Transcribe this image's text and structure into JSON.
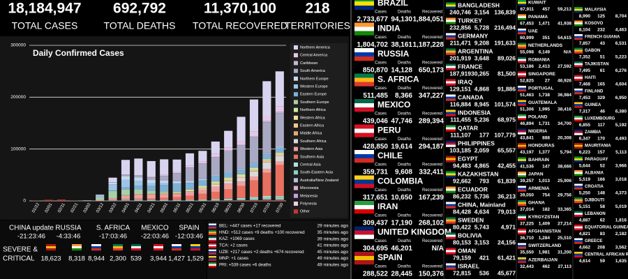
{
  "stats": [
    {
      "value": "18,184,947",
      "label": "TOTAL CASES"
    },
    {
      "value": "692,792",
      "label": "TOTAL DEATHS"
    },
    {
      "value": "11,370,100",
      "label": "TOTAL RECOVERED"
    },
    {
      "value": "218",
      "label": "TERRITORIES"
    }
  ],
  "chart_data": {
    "type": "bar",
    "stacked": true,
    "title": "Daily Confirmed Cases",
    "grid": true,
    "categories": [
      "01/22",
      "02/01",
      "02/11",
      "02/21",
      "03/02",
      "03/12",
      "03/22",
      "04/01",
      "04/11",
      "04/21",
      "05/01",
      "05/11",
      "05/21",
      "05/31",
      "06/10",
      "06/20",
      "06/30",
      "07/10",
      "07/20",
      "07/30"
    ],
    "ylim": [
      0,
      300000
    ],
    "yticks": [
      0,
      100000,
      200000,
      300000
    ],
    "series": [
      {
        "name": "Northern America",
        "color": "#d8d4f0",
        "values": [
          0,
          0,
          0,
          0,
          10,
          400,
          9000,
          28000,
          32000,
          30000,
          30000,
          24000,
          24000,
          20000,
          24000,
          32000,
          47000,
          62000,
          68000,
          68000
        ]
      },
      {
        "name": "Central America",
        "color": "#e6c8e6",
        "values": [
          0,
          0,
          0,
          0,
          0,
          10,
          60,
          300,
          700,
          1100,
          1700,
          2200,
          3500,
          4000,
          5000,
          6000,
          7000,
          8500,
          9000,
          10000
        ]
      },
      {
        "name": "Caribbean",
        "color": "#c9b5d8",
        "values": [
          0,
          0,
          0,
          0,
          0,
          10,
          50,
          250,
          350,
          400,
          500,
          500,
          600,
          700,
          900,
          900,
          1000,
          1500,
          2000,
          2500
        ]
      },
      {
        "name": "South America",
        "color": "#a9a9c4",
        "values": [
          0,
          0,
          0,
          0,
          0,
          30,
          300,
          2500,
          3500,
          5000,
          9000,
          15000,
          25000,
          30000,
          35000,
          40000,
          45000,
          50000,
          60000,
          65000
        ]
      },
      {
        "name": "Northern Europe",
        "color": "#c6d9f0",
        "values": [
          0,
          0,
          0,
          0,
          50,
          800,
          3500,
          7000,
          7000,
          6500,
          5000,
          4000,
          3000,
          1500,
          1200,
          1000,
          900,
          800,
          900,
          1000
        ]
      },
      {
        "name": "Western Europe",
        "color": "#9ec5e8",
        "values": [
          0,
          0,
          0,
          10,
          100,
          4000,
          12000,
          15000,
          9000,
          5000,
          3500,
          1500,
          1000,
          700,
          600,
          700,
          800,
          900,
          1200,
          1800
        ]
      },
      {
        "name": "Eastern Europe",
        "color": "#7fb0d8",
        "values": [
          0,
          0,
          0,
          0,
          10,
          100,
          600,
          4000,
          7000,
          9000,
          12000,
          14000,
          12000,
          10000,
          10000,
          9000,
          8500,
          8000,
          8500,
          8000
        ]
      },
      {
        "name": "Southern Europe",
        "color": "#a8d0a8",
        "values": [
          0,
          0,
          0,
          0,
          300,
          5000,
          14000,
          11000,
          8000,
          5000,
          2500,
          1500,
          1000,
          800,
          600,
          500,
          500,
          700,
          1200,
          1500
        ]
      },
      {
        "name": "Northern Africa",
        "color": "#d0e6a0",
        "values": [
          0,
          0,
          0,
          0,
          5,
          50,
          200,
          800,
          900,
          900,
          900,
          900,
          1500,
          2000,
          2300,
          2500,
          2400,
          2000,
          1500,
          1200
        ]
      },
      {
        "name": "Western Africa",
        "color": "#f0e0a0",
        "values": [
          0,
          0,
          0,
          0,
          0,
          10,
          60,
          200,
          500,
          700,
          1000,
          1200,
          1500,
          1800,
          2200,
          2300,
          2000,
          1700,
          1500,
          1300
        ]
      },
      {
        "name": "Eastern Africa",
        "color": "#f5c78e",
        "values": [
          0,
          0,
          0,
          0,
          0,
          5,
          40,
          150,
          200,
          300,
          400,
          500,
          600,
          800,
          1000,
          1300,
          1500,
          2000,
          2200,
          2300
        ]
      },
      {
        "name": "Middle Africa",
        "color": "#e8a870",
        "values": [
          0,
          0,
          0,
          0,
          0,
          5,
          30,
          100,
          150,
          250,
          400,
          500,
          500,
          600,
          600,
          600,
          500,
          500,
          400,
          400
        ]
      },
      {
        "name": "Southern Africa",
        "color": "#d9d9d9",
        "values": [
          0,
          0,
          0,
          0,
          0,
          10,
          150,
          150,
          150,
          200,
          400,
          700,
          1000,
          2000,
          3500,
          5000,
          7500,
          10000,
          13000,
          11000
        ]
      },
      {
        "name": "Western Asia",
        "color": "#f0a0a0",
        "values": [
          0,
          0,
          30,
          100,
          500,
          1500,
          3000,
          6000,
          8000,
          8000,
          7000,
          6000,
          6500,
          8000,
          10000,
          11000,
          9000,
          7500,
          7000,
          6500
        ]
      },
      {
        "name": "Southern Asia",
        "color": "#e87060",
        "values": [
          0,
          0,
          0,
          0,
          5,
          30,
          200,
          800,
          1500,
          2500,
          4000,
          5500,
          8000,
          11000,
          14000,
          18000,
          23000,
          32000,
          45000,
          60000
        ]
      },
      {
        "name": "Central Asia",
        "color": "#b0e0e0",
        "values": [
          0,
          0,
          0,
          0,
          0,
          0,
          20,
          100,
          200,
          300,
          500,
          400,
          500,
          700,
          900,
          1000,
          1500,
          2000,
          2000,
          1500
        ]
      },
      {
        "name": "South-Eastern Asia",
        "color": "#8fd0c0",
        "values": [
          0,
          10,
          30,
          40,
          30,
          200,
          800,
          1800,
          2000,
          1500,
          1200,
          1200,
          1300,
          1600,
          2000,
          2300,
          2500,
          3500,
          4500,
          5000
        ]
      },
      {
        "name": "Australia/New Zealand",
        "color": "#c0c0e0",
        "values": [
          0,
          0,
          0,
          0,
          3,
          50,
          400,
          300,
          100,
          30,
          20,
          15,
          15,
          10,
          20,
          20,
          50,
          200,
          400,
          600
        ]
      },
      {
        "name": "Micronesia",
        "color": "#e0b0d0",
        "values": [
          0,
          0,
          0,
          0,
          0,
          0,
          0,
          0,
          0,
          0,
          0,
          0,
          0,
          0,
          0,
          0,
          0,
          0,
          0,
          0
        ]
      },
      {
        "name": "Melanesia",
        "color": "#c8a0e0",
        "values": [
          0,
          0,
          0,
          0,
          0,
          0,
          0,
          0,
          0,
          0,
          0,
          0,
          0,
          0,
          0,
          5,
          10,
          20,
          30,
          30
        ]
      },
      {
        "name": "Polynesia",
        "color": "#f0d0e0",
        "values": [
          0,
          0,
          0,
          0,
          0,
          0,
          0,
          0,
          0,
          0,
          0,
          0,
          0,
          0,
          0,
          0,
          0,
          0,
          0,
          0
        ]
      },
      {
        "name": "Other",
        "color": "#c0392b",
        "values": [
          450,
          2100,
          2500,
          400,
          200,
          100,
          400,
          600,
          400,
          100,
          150,
          100,
          200,
          300,
          600,
          1000,
          1500,
          1800,
          2500,
          2200
        ]
      }
    ]
  },
  "updates": [
    {
      "country": "CHINA update",
      "time": "-21:23:46"
    },
    {
      "country": "RUSSIA",
      "time": "-4:33:46"
    },
    {
      "country": "S. AFRICA",
      "time": "-17:03:46"
    },
    {
      "country": "MEXICO",
      "time": "-22:03:46"
    },
    {
      "country": "SPAIN",
      "time": "-12:03:46"
    }
  ],
  "severe": {
    "label": [
      "SEVERE &",
      "CRITICAL"
    ],
    "values": [
      "18,623",
      "8,318",
      "8,944",
      "2,300",
      "539",
      "3,944",
      "1,427",
      "1,529"
    ]
  },
  "news": [
    {
      "text": "BEL: +447 cases +17 recovered",
      "time": "29 minutes ago"
    },
    {
      "text": "HND: +512 cases +9 deaths +100 recovered",
      "time": "35 minutes ago"
    },
    {
      "text": "KAZ: +1069 cases",
      "time": "39 minutes ago"
    },
    {
      "text": "TCA: +2 cases",
      "time": "41 minutes ago"
    },
    {
      "text": "UZB: +217 cases +2 deaths +674 recovered",
      "time": "45 minutes ago"
    },
    {
      "text": "MNP: +1 cases",
      "time": "49 minutes ago"
    },
    {
      "text": "PRI: +539 cases +6 deaths",
      "time": "49 minutes ago"
    }
  ],
  "column_headers": [
    "Cases",
    "Deaths",
    "Recovered"
  ],
  "countries_large": [
    [
      "BRAZIL",
      "2,733,677",
      "94,130",
      "1,884,051"
    ],
    [
      "INDIA",
      "1,804,702",
      "38,161",
      "1,187,228"
    ],
    [
      "RUSSIA",
      "850,870",
      "14,128",
      "650,173"
    ],
    [
      "S. AFRICA",
      "511,485",
      "8,366",
      "347,227"
    ],
    [
      "MEXICO",
      "439,046",
      "47,746",
      "289,394"
    ],
    [
      "PERU",
      "428,850",
      "19,614",
      "294,187"
    ],
    [
      "CHILE",
      "359,731",
      "9,608",
      "332,411"
    ],
    [
      "COLOMBIA",
      "317,651",
      "10,650",
      "167,239"
    ],
    [
      "IRAN",
      "309,437",
      "17,190",
      "268,102"
    ],
    [
      "UNITED KINGDOM",
      "304,695",
      "46,201",
      "N/A"
    ],
    [
      "SPAIN",
      "288,522",
      "28,445",
      "150,376"
    ]
  ],
  "countries_medium": [
    [
      "BANGLADESH",
      "240,746",
      "3,154",
      "136,839"
    ],
    [
      "TURKEY",
      "232,856",
      "5,728",
      "216,494"
    ],
    [
      "GERMANY",
      "211,471",
      "9,208",
      "191,633"
    ],
    [
      "ARGENTINA",
      "201,919",
      "3,648",
      "89,026"
    ],
    [
      "FRANCE",
      "187,919",
      "30,265",
      "81,500"
    ],
    [
      "IRAQ",
      "129,151",
      "4,868",
      "91,886"
    ],
    [
      "CANADA",
      "116,884",
      "8,945",
      "101,574"
    ],
    [
      "INDONESIA",
      "111,455",
      "5,236",
      "68,975"
    ],
    [
      "QATAR",
      "111,107",
      "177",
      "107,779"
    ],
    [
      "PHILIPPINES",
      "103,185",
      "2,059",
      "65,557"
    ],
    [
      "EGYPT",
      "94,483",
      "4,865",
      "42,455"
    ],
    [
      "KAZAKHSTAN",
      "92,662",
      "793",
      "61,839"
    ],
    [
      "ECUADOR",
      "86,232",
      "5,736",
      "36,213"
    ],
    [
      "CHINA, Mainland",
      "84,428",
      "4,634",
      "79,013"
    ],
    [
      "SWEDEN",
      "80,422",
      "5,743",
      "4,971"
    ],
    [
      "BOLIVIA",
      "80,153",
      "3,153",
      "24,156"
    ],
    [
      "OMAN",
      "79,159",
      "421",
      "61,421"
    ],
    [
      "ISRAEL",
      "72,815",
      "536",
      "45,677"
    ]
  ],
  "countries_small_a": [
    [
      "KUWAIT",
      "67,911",
      "457",
      "59,213"
    ],
    [
      "PANAMA",
      "67,453",
      "1,471",
      "41,938"
    ],
    [
      "UAE",
      "60,999",
      "351",
      "54,615"
    ],
    [
      "NETHERLANDS",
      "55,098",
      "6,149",
      "N/A"
    ],
    [
      "ROMANIA",
      "53,186",
      "2,413",
      "27,592"
    ],
    [
      "SINGAPORE",
      "52,825",
      "27",
      "46,926"
    ],
    [
      "PORTUGAL",
      "51,463",
      "1,738",
      "36,984"
    ],
    [
      "GUATEMALA",
      "51,306",
      "1,995",
      "38,416"
    ],
    [
      "POLAND",
      "46,894",
      "1,731",
      "34,700"
    ],
    [
      "NIGERIA",
      "43,841",
      "888",
      "20,308"
    ],
    [
      "HONDURAS",
      "43,197",
      "1,377",
      "5,794"
    ],
    [
      "BAHRAIN",
      "41,536",
      "147",
      "38,666"
    ],
    [
      "JAPAN",
      "39,257",
      "1,013",
      "25,906"
    ],
    [
      "ARMENIA",
      "39,050",
      "754",
      "29,756"
    ],
    [
      "GHANA",
      "37,014",
      "182",
      "33,365"
    ],
    [
      "KYRGYZSTAN",
      "37,225",
      "1,409",
      "27,214"
    ],
    [
      "AFGHANISTAN",
      "36,710",
      "1,284",
      "25,510"
    ],
    [
      "SWITZERLAND",
      "35,550",
      "1,981",
      "31,200"
    ],
    [
      "AZERBAIJAN",
      "32,443",
      "462",
      "27,113"
    ]
  ],
  "countries_small_b": [
    [
      "MALAYSIA",
      "8,990",
      "125",
      "8,704"
    ],
    [
      "KOSOVO",
      "8,104",
      "232",
      "4,463"
    ],
    [
      "FRENCH GUIANA",
      "7,857",
      "43",
      "6,531"
    ],
    [
      "GABON",
      "7,352",
      "51",
      "5,223"
    ],
    [
      "TAJIKISTAN",
      "7,495",
      "61",
      "6,276"
    ],
    [
      "HAITI",
      "7,468",
      "165",
      "4,604"
    ],
    [
      "FINLAND",
      "7,453",
      "329",
      "6,950"
    ],
    [
      "GUINEA",
      "7,317",
      "46",
      "6,380"
    ],
    [
      "LUXEMBOURG",
      "6,855",
      "117",
      "5,192"
    ],
    [
      "ZAMBIA",
      "6,347",
      "170",
      "4,493"
    ],
    [
      "MAURITANIA",
      "6,223",
      "157",
      "5,113"
    ],
    [
      "PARAGUAY",
      "5,644",
      "52",
      "3,966"
    ],
    [
      "ALBANIA",
      "5,519",
      "166",
      "3,018"
    ],
    [
      "CROATIA",
      "5,250",
      "148",
      "4,373"
    ],
    [
      "DJIBOUTI",
      "5,151",
      "58",
      "5,019"
    ],
    [
      "LEBANON",
      "4,887",
      "62",
      "1,816"
    ],
    [
      "EQUATORIAL GUINEA",
      "4,821",
      "83",
      "2,182"
    ],
    [
      "GREECE",
      "4,662",
      "208",
      "3,562"
    ],
    [
      "CENTRAL AFRICAN REPUBLIC",
      "4,614",
      "59",
      "1,635"
    ]
  ]
}
